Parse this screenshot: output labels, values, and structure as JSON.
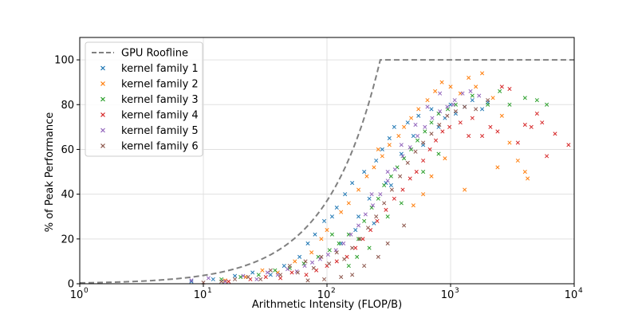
{
  "chart_data": {
    "type": "scatter",
    "title": "",
    "xlabel": "Arithmetic Intensity (FLOP/B)",
    "ylabel": "% of Peak Performance",
    "xscale": "log",
    "xlim": [
      1,
      10000
    ],
    "ylim": [
      0,
      110
    ],
    "x_ticks": [
      {
        "value": 1,
        "base": "10",
        "exp": "0"
      },
      {
        "value": 10,
        "base": "10",
        "exp": "1"
      },
      {
        "value": 100,
        "base": "10",
        "exp": "2"
      },
      {
        "value": 1000,
        "base": "10",
        "exp": "3"
      },
      {
        "value": 10000,
        "base": "10",
        "exp": "4"
      }
    ],
    "y_ticks": [
      0,
      20,
      40,
      60,
      80,
      100
    ],
    "grid": true,
    "legend_position": "top-left",
    "roofline": {
      "name": "GPU Roofline",
      "color": "#808080",
      "ridge_x": 270,
      "peak": 100,
      "points": [
        [
          1,
          0.37
        ],
        [
          3,
          1.1
        ],
        [
          10,
          3.7
        ],
        [
          30,
          11.1
        ],
        [
          60,
          22.2
        ],
        [
          100,
          37.0
        ],
        [
          150,
          55.6
        ],
        [
          200,
          74.1
        ],
        [
          270,
          100
        ],
        [
          10000,
          100
        ]
      ]
    },
    "series": [
      {
        "name": "kernel family 1",
        "color": "#1f77b4",
        "points": [
          [
            8,
            1.0
          ],
          [
            12,
            2.0
          ],
          [
            18,
            3.5
          ],
          [
            25,
            5.0
          ],
          [
            35,
            4.0
          ],
          [
            45,
            8.0
          ],
          [
            60,
            12.0
          ],
          [
            70,
            18.0
          ],
          [
            80,
            22.0
          ],
          [
            95,
            28.0
          ],
          [
            110,
            30.0
          ],
          [
            120,
            34.0
          ],
          [
            140,
            40.0
          ],
          [
            160,
            45.0
          ],
          [
            180,
            30.0
          ],
          [
            200,
            50.0
          ],
          [
            220,
            38.0
          ],
          [
            250,
            55.0
          ],
          [
            280,
            60.0
          ],
          [
            300,
            45.0
          ],
          [
            320,
            65.0
          ],
          [
            350,
            70.0
          ],
          [
            400,
            58.0
          ],
          [
            450,
            72.0
          ],
          [
            500,
            66.0
          ],
          [
            550,
            75.0
          ],
          [
            600,
            62.0
          ],
          [
            700,
            78.0
          ],
          [
            800,
            70.0
          ],
          [
            900,
            74.0
          ],
          [
            1000,
            80.0
          ],
          [
            1100,
            76.0
          ],
          [
            1300,
            79.0
          ],
          [
            1500,
            82.0
          ],
          [
            1800,
            78.0
          ],
          [
            2000,
            81.0
          ],
          [
            130,
            18.0
          ],
          [
            170,
            24.0
          ],
          [
            240,
            27.0
          ],
          [
            330,
            44.0
          ]
        ]
      },
      {
        "name": "kernel family 2",
        "color": "#ff7f0e",
        "points": [
          [
            15,
            1.5
          ],
          [
            22,
            3.0
          ],
          [
            30,
            6.0
          ],
          [
            40,
            5.0
          ],
          [
            55,
            10.0
          ],
          [
            75,
            14.0
          ],
          [
            90,
            20.0
          ],
          [
            100,
            24.0
          ],
          [
            130,
            32.0
          ],
          [
            150,
            36.0
          ],
          [
            180,
            42.0
          ],
          [
            210,
            48.0
          ],
          [
            240,
            52.0
          ],
          [
            280,
            57.0
          ],
          [
            320,
            62.0
          ],
          [
            380,
            66.0
          ],
          [
            420,
            70.0
          ],
          [
            480,
            74.0
          ],
          [
            550,
            78.0
          ],
          [
            650,
            82.0
          ],
          [
            750,
            86.0
          ],
          [
            850,
            90.0
          ],
          [
            1000,
            88.0
          ],
          [
            1200,
            85.0
          ],
          [
            1400,
            92.0
          ],
          [
            1600,
            88.0
          ],
          [
            1800,
            94.0
          ],
          [
            2200,
            83.0
          ],
          [
            2600,
            75.0
          ],
          [
            3000,
            63.0
          ],
          [
            3500,
            55.0
          ],
          [
            4000,
            50.0
          ],
          [
            4200,
            47.0
          ],
          [
            1300,
            42.0
          ],
          [
            2400,
            52.0
          ],
          [
            900,
            56.0
          ],
          [
            700,
            48.0
          ],
          [
            600,
            40.0
          ],
          [
            500,
            35.0
          ],
          [
            260,
            60.0
          ]
        ]
      },
      {
        "name": "kernel family 3",
        "color": "#2ca02c",
        "points": [
          [
            14,
            2.0
          ],
          [
            20,
            3.0
          ],
          [
            28,
            4.0
          ],
          [
            38,
            6.0
          ],
          [
            50,
            7.0
          ],
          [
            65,
            9.0
          ],
          [
            85,
            12.0
          ],
          [
            105,
            15.0
          ],
          [
            125,
            18.0
          ],
          [
            150,
            22.0
          ],
          [
            175,
            12.0
          ],
          [
            200,
            28.0
          ],
          [
            230,
            34.0
          ],
          [
            260,
            38.0
          ],
          [
            290,
            44.0
          ],
          [
            330,
            48.0
          ],
          [
            370,
            52.0
          ],
          [
            420,
            56.0
          ],
          [
            480,
            60.0
          ],
          [
            540,
            64.0
          ],
          [
            620,
            68.0
          ],
          [
            700,
            72.0
          ],
          [
            800,
            76.0
          ],
          [
            950,
            78.0
          ],
          [
            1100,
            80.0
          ],
          [
            1500,
            84.0
          ],
          [
            2000,
            80.0
          ],
          [
            3000,
            80.0
          ],
          [
            4000,
            83.0
          ],
          [
            5000,
            82.0
          ],
          [
            6000,
            80.0
          ],
          [
            2500,
            86.0
          ],
          [
            180,
            20.0
          ],
          [
            220,
            16.0
          ],
          [
            310,
            30.0
          ],
          [
            400,
            36.0
          ],
          [
            150,
            8.0
          ],
          [
            110,
            22.0
          ],
          [
            600,
            50.0
          ],
          [
            800,
            58.0
          ]
        ]
      },
      {
        "name": "kernel family 4",
        "color": "#d62728",
        "points": [
          [
            16,
            1.0
          ],
          [
            24,
            2.0
          ],
          [
            32,
            3.0
          ],
          [
            42,
            2.5
          ],
          [
            52,
            5.0
          ],
          [
            68,
            4.0
          ],
          [
            82,
            6.0
          ],
          [
            100,
            8.0
          ],
          [
            120,
            10.0
          ],
          [
            145,
            12.0
          ],
          [
            170,
            16.0
          ],
          [
            195,
            20.0
          ],
          [
            225,
            24.0
          ],
          [
            255,
            28.0
          ],
          [
            300,
            33.0
          ],
          [
            350,
            38.0
          ],
          [
            410,
            42.0
          ],
          [
            470,
            47.0
          ],
          [
            530,
            50.0
          ],
          [
            600,
            55.0
          ],
          [
            680,
            60.0
          ],
          [
            760,
            64.0
          ],
          [
            860,
            68.0
          ],
          [
            980,
            70.0
          ],
          [
            1200,
            72.0
          ],
          [
            1500,
            74.0
          ],
          [
            1800,
            66.0
          ],
          [
            2100,
            70.0
          ],
          [
            2600,
            88.0
          ],
          [
            3000,
            87.0
          ],
          [
            3500,
            63.0
          ],
          [
            4000,
            71.0
          ],
          [
            4500,
            70.0
          ],
          [
            5500,
            72.0
          ],
          [
            6000,
            57.0
          ],
          [
            9000,
            62.0
          ],
          [
            2400,
            68.0
          ],
          [
            1400,
            66.0
          ],
          [
            5000,
            76.0
          ],
          [
            7000,
            67.0
          ]
        ]
      },
      {
        "name": "kernel family 5",
        "color": "#9467bd",
        "points": [
          [
            8,
            1.5
          ],
          [
            11,
            2.5
          ],
          [
            15,
            1.0
          ],
          [
            21,
            3.5
          ],
          [
            27,
            2.0
          ],
          [
            33,
            5.0
          ],
          [
            40,
            4.0
          ],
          [
            48,
            6.5
          ],
          [
            57,
            5.5
          ],
          [
            66,
            8.0
          ],
          [
            76,
            9.5
          ],
          [
            88,
            11.0
          ],
          [
            102,
            13.0
          ],
          [
            118,
            15.0
          ],
          [
            136,
            18.0
          ],
          [
            156,
            22.0
          ],
          [
            180,
            26.0
          ],
          [
            205,
            31.0
          ],
          [
            235,
            35.0
          ],
          [
            270,
            40.0
          ],
          [
            310,
            46.0
          ],
          [
            355,
            51.0
          ],
          [
            410,
            57.0
          ],
          [
            470,
            61.0
          ],
          [
            540,
            66.0
          ],
          [
            620,
            70.0
          ],
          [
            710,
            74.0
          ],
          [
            820,
            77.0
          ],
          [
            940,
            79.0
          ],
          [
            1080,
            82.0
          ],
          [
            1250,
            85.0
          ],
          [
            1450,
            86.0
          ],
          [
            1700,
            84.0
          ],
          [
            230,
            40.0
          ],
          [
            310,
            50.0
          ],
          [
            400,
            62.0
          ],
          [
            520,
            71.0
          ],
          [
            650,
            79.0
          ],
          [
            820,
            85.0
          ],
          [
            1050,
            80.0
          ]
        ]
      },
      {
        "name": "kernel family 6",
        "color": "#8c564b",
        "points": [
          [
            10,
            0.5
          ],
          [
            14,
            1.0
          ],
          [
            18,
            2.0
          ],
          [
            23,
            3.0
          ],
          [
            29,
            2.0
          ],
          [
            35,
            6.0
          ],
          [
            42,
            4.0
          ],
          [
            50,
            8.0
          ],
          [
            58,
            5.0
          ],
          [
            67,
            10.0
          ],
          [
            78,
            7.0
          ],
          [
            90,
            12.0
          ],
          [
            104,
            9.0
          ],
          [
            120,
            14.0
          ],
          [
            138,
            11.0
          ],
          [
            160,
            16.0
          ],
          [
            185,
            20.0
          ],
          [
            215,
            25.0
          ],
          [
            250,
            30.0
          ],
          [
            290,
            36.0
          ],
          [
            335,
            42.0
          ],
          [
            390,
            48.0
          ],
          [
            450,
            54.0
          ],
          [
            520,
            59.0
          ],
          [
            600,
            63.0
          ],
          [
            700,
            67.0
          ],
          [
            810,
            71.0
          ],
          [
            940,
            75.0
          ],
          [
            1100,
            77.0
          ],
          [
            1300,
            79.0
          ],
          [
            1600,
            78.0
          ],
          [
            2000,
            82.0
          ],
          [
            260,
            12.0
          ],
          [
            200,
            8.0
          ],
          [
            160,
            4.0
          ],
          [
            130,
            3.0
          ],
          [
            95,
            2.0
          ],
          [
            70,
            1.5
          ],
          [
            310,
            18.0
          ],
          [
            420,
            26.0
          ]
        ]
      }
    ]
  }
}
